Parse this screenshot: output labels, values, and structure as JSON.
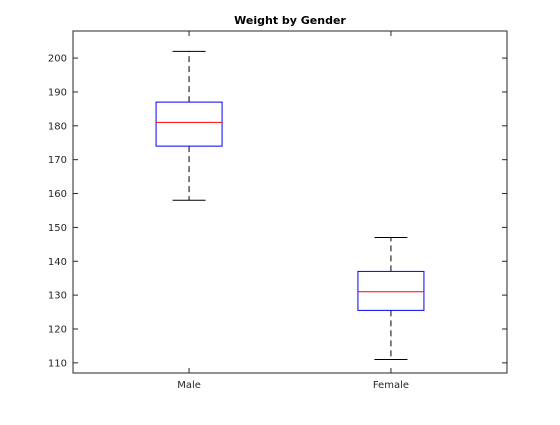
{
  "chart_data": {
    "type": "box",
    "title": "Weight by Gender",
    "xlabel": "",
    "ylabel": "",
    "categories": [
      "Male",
      "Female"
    ],
    "ylim": [
      107,
      208
    ],
    "yticks": [
      110,
      120,
      130,
      140,
      150,
      160,
      170,
      180,
      190,
      200
    ],
    "grid": false,
    "boxes": [
      {
        "category": "Male",
        "whisker_low": 158,
        "q1": 174,
        "median": 181,
        "q3": 187,
        "whisker_high": 202
      },
      {
        "category": "Female",
        "whisker_low": 111,
        "q1": 125.5,
        "median": 131,
        "q3": 137,
        "whisker_high": 147
      }
    ],
    "colors": {
      "box": "#0000ff",
      "median": "#ff0000",
      "whisker": "#000000"
    }
  }
}
